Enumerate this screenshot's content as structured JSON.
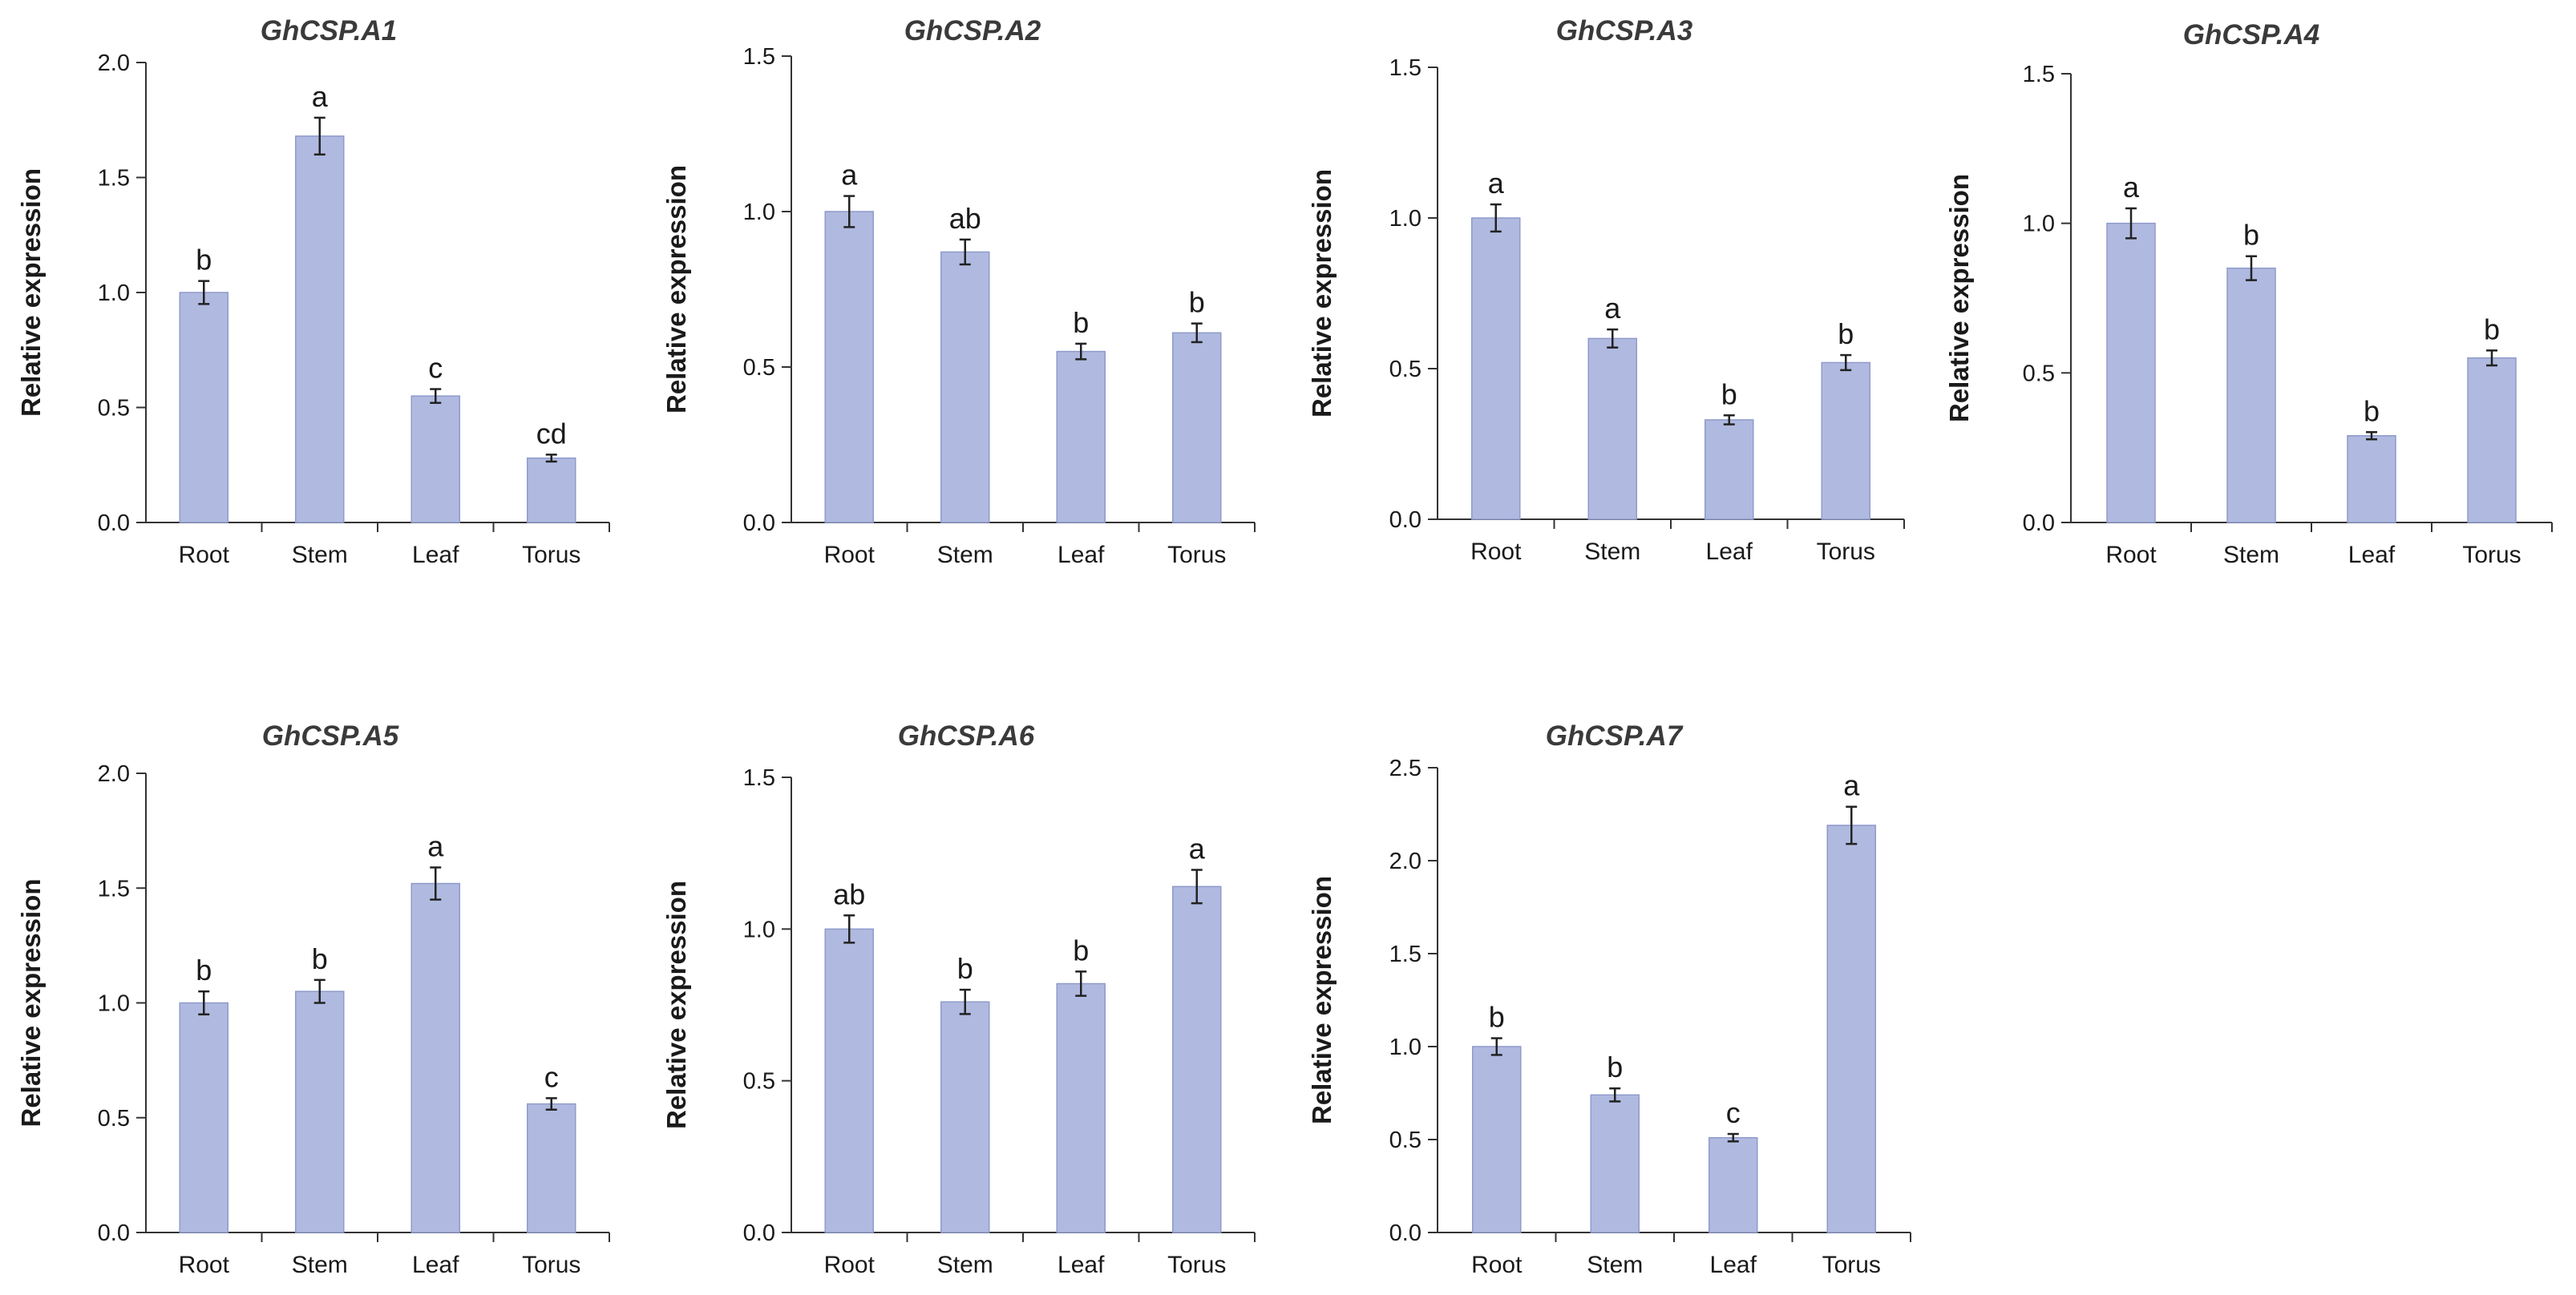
{
  "colors": {
    "bar_fill": "#b0bae0",
    "bar_stroke": "#8f9acb",
    "axis": "#333333"
  },
  "chart_data": [
    {
      "type": "bar",
      "title": "GhCSP.A1",
      "ylabel": "Relative expression",
      "xlabel": "",
      "categories": [
        "Root",
        "Stem",
        "Leaf",
        "Torus"
      ],
      "values": [
        1.0,
        1.68,
        0.55,
        0.28
      ],
      "errors": [
        0.05,
        0.08,
        0.03,
        0.015
      ],
      "significance": [
        "b",
        "a",
        "c",
        "cd"
      ],
      "ylim": [
        0,
        2.0
      ],
      "yticks": [
        0.0,
        0.5,
        1.0,
        1.5,
        2.0
      ],
      "ytick_labels": [
        "0.0",
        "0.5",
        "1.0",
        "1.5",
        "2.0"
      ]
    },
    {
      "type": "bar",
      "title": "GhCSP.A2",
      "ylabel": "Relative expression",
      "xlabel": "",
      "categories": [
        "Root",
        "Stem",
        "Leaf",
        "Torus"
      ],
      "values": [
        1.0,
        0.87,
        0.55,
        0.61
      ],
      "errors": [
        0.05,
        0.04,
        0.025,
        0.03
      ],
      "significance": [
        "a",
        "ab",
        "b",
        "b"
      ],
      "ylim": [
        0,
        1.5
      ],
      "yticks": [
        0.0,
        0.5,
        1.0,
        1.5
      ],
      "ytick_labels": [
        "0.0",
        "0.5",
        "1.0",
        "1.5"
      ]
    },
    {
      "type": "bar",
      "title": "GhCSP.A3",
      "ylabel": "Relative expression",
      "xlabel": "",
      "categories": [
        "Root",
        "Stem",
        "Leaf",
        "Torus"
      ],
      "values": [
        1.0,
        0.6,
        0.33,
        0.52
      ],
      "errors": [
        0.045,
        0.03,
        0.015,
        0.025
      ],
      "significance": [
        "a",
        "a",
        "b",
        "b"
      ],
      "ylim": [
        0,
        1.5
      ],
      "yticks": [
        0.0,
        0.5,
        1.0,
        1.5
      ],
      "ytick_labels": [
        "0.0",
        "0.5",
        "1.0",
        "1.5"
      ]
    },
    {
      "type": "bar",
      "title": "GhCSP.A4",
      "ylabel": "Relative expression",
      "xlabel": "",
      "categories": [
        "Root",
        "Stem",
        "Leaf",
        "Torus"
      ],
      "values": [
        1.0,
        0.85,
        0.29,
        0.55
      ],
      "errors": [
        0.05,
        0.04,
        0.012,
        0.025
      ],
      "significance": [
        "a",
        "b",
        "b",
        "b"
      ],
      "ylim": [
        0,
        1.5
      ],
      "yticks": [
        0.0,
        0.5,
        1.0,
        1.5
      ],
      "ytick_labels": [
        "0.0",
        "0.5",
        "1.0",
        "1.5"
      ]
    },
    {
      "type": "bar",
      "title": "GhCSP.A5",
      "ylabel": "Relative expression",
      "xlabel": "",
      "categories": [
        "Root",
        "Stem",
        "Leaf",
        "Torus"
      ],
      "values": [
        1.0,
        1.05,
        1.52,
        0.56
      ],
      "errors": [
        0.05,
        0.05,
        0.07,
        0.025
      ],
      "significance": [
        "b",
        "b",
        "a",
        "c"
      ],
      "ylim": [
        0,
        2.0
      ],
      "yticks": [
        0.0,
        0.5,
        1.0,
        1.5,
        2.0
      ],
      "ytick_labels": [
        "0.0",
        "0.5",
        "1.0",
        "1.5",
        "2.0"
      ]
    },
    {
      "type": "bar",
      "title": "GhCSP.A6",
      "ylabel": "Relative expression",
      "xlabel": "",
      "categories": [
        "Root",
        "Stem",
        "Leaf",
        "Torus"
      ],
      "values": [
        1.0,
        0.76,
        0.82,
        1.14
      ],
      "errors": [
        0.045,
        0.04,
        0.04,
        0.055
      ],
      "significance": [
        "ab",
        "b",
        "b",
        "a"
      ],
      "ylim": [
        0,
        1.5
      ],
      "yticks": [
        0.0,
        0.5,
        1.0,
        1.5
      ],
      "ytick_labels": [
        "0.0",
        "0.5",
        "1.0",
        "1.5"
      ]
    },
    {
      "type": "bar",
      "title": "GhCSP.A7",
      "ylabel": "Relative expression",
      "xlabel": "",
      "categories": [
        "Root",
        "Stem",
        "Leaf",
        "Torus"
      ],
      "values": [
        1.0,
        0.74,
        0.51,
        2.19
      ],
      "errors": [
        0.045,
        0.035,
        0.02,
        0.1
      ],
      "significance": [
        "b",
        "b",
        "c",
        "a"
      ],
      "ylim": [
        0,
        2.5
      ],
      "yticks": [
        0.0,
        0.5,
        1.0,
        1.5,
        2.0,
        2.5
      ],
      "ytick_labels": [
        "0.0",
        "0.5",
        "1.0",
        "1.5",
        "2.0",
        "2.5"
      ]
    }
  ]
}
